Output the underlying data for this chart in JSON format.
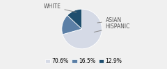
{
  "labels": [
    "WHITE",
    "HISPANIC",
    "ASIAN"
  ],
  "values": [
    70.6,
    16.5,
    12.9
  ],
  "colors": [
    "#d5dae6",
    "#5b7fa6",
    "#1f4e6e"
  ],
  "legend_labels": [
    "70.6%",
    "16.5%",
    "12.9%"
  ],
  "startangle": 90,
  "figsize": [
    2.4,
    1.0
  ],
  "dpi": 100,
  "bg_color": "#f0f0f0"
}
